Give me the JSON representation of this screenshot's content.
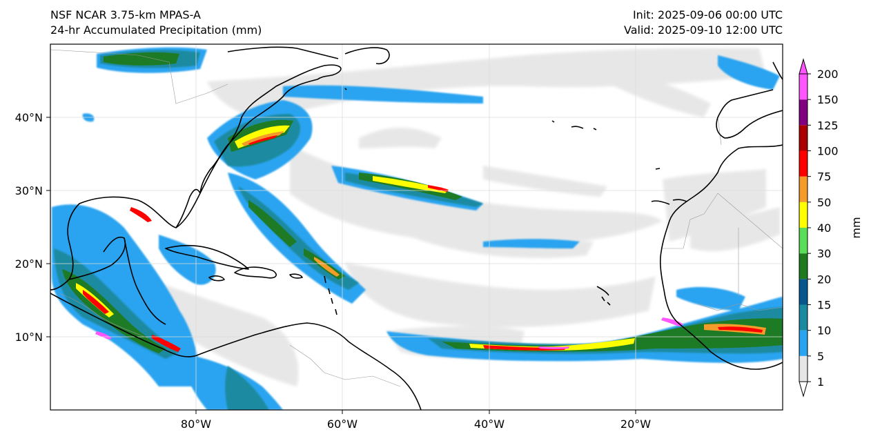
{
  "header": {
    "model_title": "NSF NCAR 3.75-km MPAS-A",
    "field_title": "24-hr Accumulated Precipitation (mm)",
    "init_label": "Init: 2025-09-06 00:00 UTC",
    "valid_label": "Valid: 2025-09-10 12:00 UTC"
  },
  "map": {
    "lon_labels": [
      "80°W",
      "60°W",
      "40°W",
      "20°W"
    ],
    "lat_labels": [
      "40°N",
      "30°N",
      "20°N",
      "10°N"
    ],
    "coastline_color": "#000000",
    "border_color": "#999999",
    "grid_color": "#dddddd"
  },
  "colorbar": {
    "unit_label": "mm",
    "levels": [
      "1",
      "5",
      "10",
      "15",
      "20",
      "30",
      "40",
      "50",
      "75",
      "100",
      "125",
      "150",
      "200"
    ],
    "colors": [
      "#e6e6e6",
      "#2ba4f0",
      "#1a8aa0",
      "#08578c",
      "#1f7a1f",
      "#5ade5a",
      "#ffff00",
      "#f39c2a",
      "#ff0000",
      "#aa0000",
      "#800080",
      "#ff55ff"
    ]
  },
  "legend_levels": {
    "light": "#e6e6e6",
    "blue": "#2ba4f0",
    "teal": "#1a8aa0",
    "navy": "#08578c",
    "green": "#1f7a1f",
    "lime": "#5ade5a",
    "yellow": "#ffff00",
    "orange": "#f39c2a",
    "red": "#ff0000",
    "darkred": "#aa0000",
    "purple": "#800080",
    "magenta": "#ff55ff"
  }
}
